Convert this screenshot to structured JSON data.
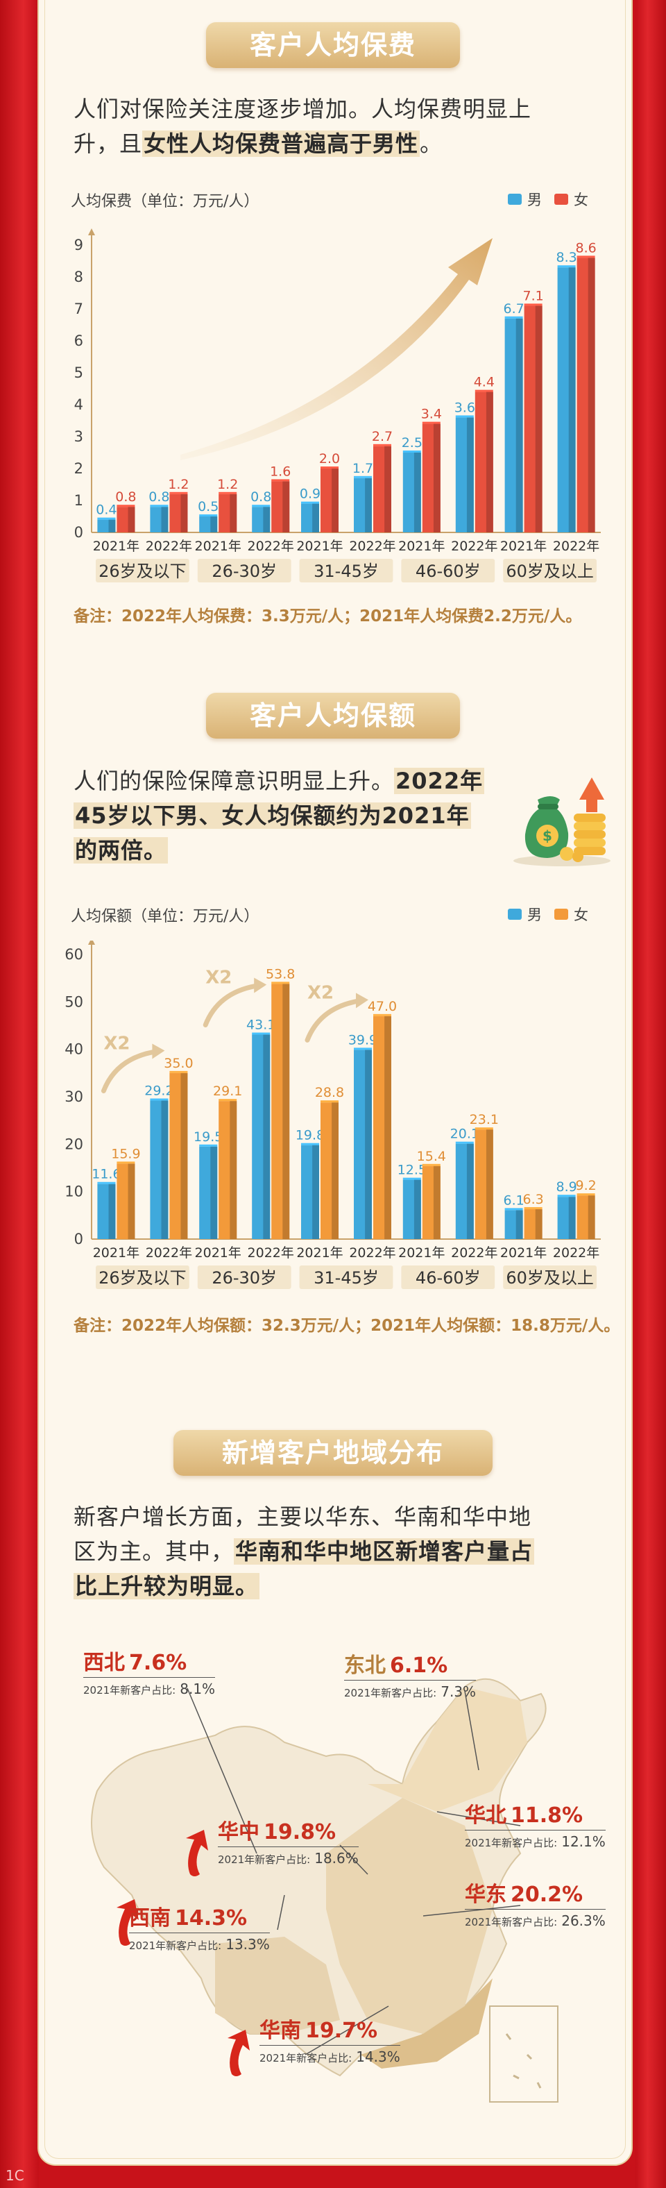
{
  "sections": {
    "premium": {
      "title": "客户人均保费",
      "para_1": "人们对保险关注度逐步增加。人均保费明显上",
      "para_2a": "升，且",
      "para_2b": "女性人均保费普遍高于男性",
      "para_2c": "。",
      "note": "备注：2022年人均保费：3.3万元/人；2021年人均保费2.2万元/人。"
    },
    "coverage": {
      "title": "客户人均保额",
      "para_1a": "人们的保险保障意识明显上升。",
      "para_1b": "2022年",
      "para_2": "45岁以下男、女人均保额约为2021年",
      "para_3": "的两倍。",
      "x2_label": "X2",
      "note": "备注：2022年人均保额：32.3万元/人；2021年人均保额：18.8万元/人。"
    },
    "region": {
      "title": "新增客户地域分布",
      "para_1": "新客户增长方面，主要以华东、华南和华中地",
      "para_2a": "区为主。其中，",
      "para_2b": "华南和华中地区新增客户量占",
      "para_3": "比上升较为明显。"
    }
  },
  "chart_data": [
    {
      "type": "bar",
      "ylabel": "人均保费（单位：万元/人）",
      "ylim": [
        0,
        9
      ],
      "yticks": [
        0,
        1,
        2,
        3,
        4,
        5,
        6,
        7,
        8,
        9
      ],
      "groups": [
        "26岁及以下",
        "26-30岁",
        "31-45岁",
        "46-60岁",
        "60岁及以上"
      ],
      "years": [
        "2021年",
        "2022年"
      ],
      "series": [
        {
          "name": "男",
          "color": "#3fa9dc",
          "values": [
            [
              0.4,
              0.8
            ],
            [
              0.5,
              0.8
            ],
            [
              0.9,
              1.7
            ],
            [
              2.5,
              3.6
            ],
            [
              6.7,
              8.3
            ]
          ]
        },
        {
          "name": "女",
          "color": "#e8513e",
          "values": [
            [
              0.8,
              1.2
            ],
            [
              1.2,
              1.6
            ],
            [
              2.0,
              2.7
            ],
            [
              3.4,
              4.4
            ],
            [
              7.1,
              8.6
            ]
          ]
        }
      ]
    },
    {
      "type": "bar",
      "ylabel": "人均保额（单位：万元/人）",
      "ylim": [
        0,
        60
      ],
      "yticks": [
        0,
        10,
        20,
        30,
        40,
        50,
        60
      ],
      "groups": [
        "26岁及以下",
        "26-30岁",
        "31-45岁",
        "46-60岁",
        "60岁及以上"
      ],
      "years": [
        "2021年",
        "2022年"
      ],
      "series": [
        {
          "name": "男",
          "color": "#3fa9dc",
          "values": [
            [
              11.6,
              29.2
            ],
            [
              19.5,
              43.1
            ],
            [
              19.8,
              39.9
            ],
            [
              12.5,
              20.1
            ],
            [
              6.1,
              8.9
            ]
          ]
        },
        {
          "name": "女",
          "color": "#f39a3a",
          "values": [
            [
              15.9,
              35.0
            ],
            [
              29.1,
              53.8
            ],
            [
              28.8,
              47.0
            ],
            [
              15.4,
              23.1
            ],
            [
              6.3,
              9.2
            ]
          ]
        }
      ]
    }
  ],
  "regions": [
    {
      "name": "西北",
      "pct": "7.6%",
      "sub_label": "2021年新客户占比:",
      "sub_value": "8.1%"
    },
    {
      "name": "东北",
      "pct": "6.1%",
      "sub_label": "2021年新客户占比:",
      "sub_value": "7.3%"
    },
    {
      "name": "华中",
      "pct": "19.8%",
      "sub_label": "2021年新客户占比:",
      "sub_value": "18.6%"
    },
    {
      "name": "华北",
      "pct": "11.8%",
      "sub_label": "2021年新客户占比:",
      "sub_value": "12.1%"
    },
    {
      "name": "西南",
      "pct": "14.3%",
      "sub_label": "2021年新客户占比:",
      "sub_value": "13.3%"
    },
    {
      "name": "华东",
      "pct": "20.2%",
      "sub_label": "2021年新客户占比:",
      "sub_value": "26.3%"
    },
    {
      "name": "华南",
      "pct": "19.7%",
      "sub_label": "2021年新客户占比:",
      "sub_value": "14.3%"
    }
  ],
  "colors": {
    "accent_red": "#c8121a",
    "gold": "#d9b274",
    "panel": "#fdf7ec",
    "label_red": "#c8301f"
  }
}
